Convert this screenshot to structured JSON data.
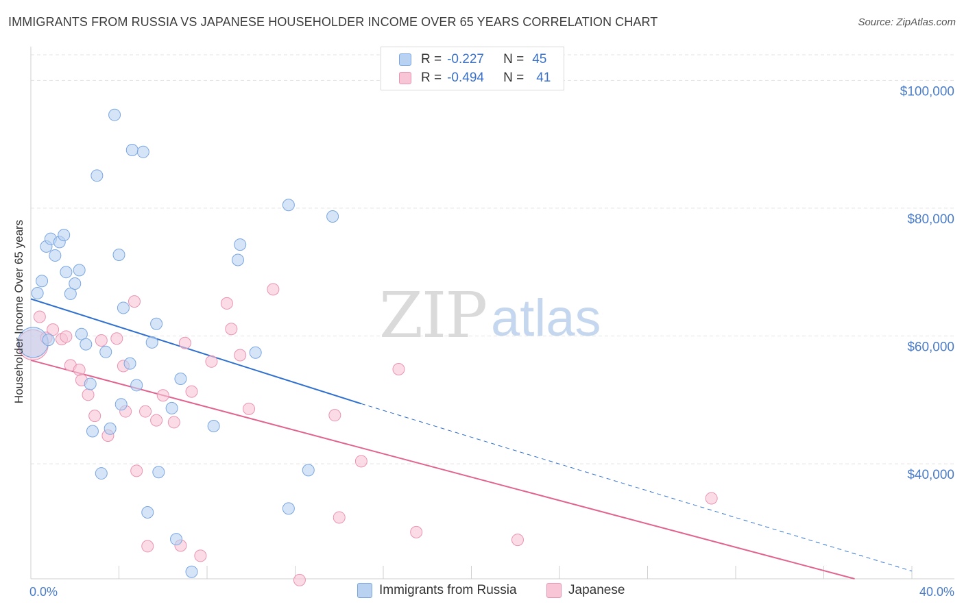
{
  "title": "IMMIGRANTS FROM RUSSIA VS JAPANESE HOUSEHOLDER INCOME OVER 65 YEARS CORRELATION CHART",
  "source": "Source: ZipAtlas.com",
  "watermark": {
    "zip": "ZIP",
    "atlas": "atlas"
  },
  "legend": {
    "rows": [
      {
        "r_label": "R =",
        "r_value": "-0.227",
        "n_label": "N =",
        "n_value": "45"
      },
      {
        "r_label": "R =",
        "r_value": "-0.494",
        "n_label": "N =",
        "n_value": "41"
      }
    ]
  },
  "bottom_legend": {
    "series1": "Immigrants from Russia",
    "series2": "Japanese"
  },
  "colors": {
    "russia_fill": "#b9d2f2",
    "russia_stroke": "#7aa6e0",
    "russia_line": "#2f6fce",
    "japanese_fill": "#f8c5d6",
    "japanese_stroke": "#e993b3",
    "japanese_line": "#e0648f",
    "grid": "#e3e3e3",
    "tick_label": "#4a7cc9"
  },
  "chart_data": {
    "type": "scatter",
    "xlabel": "",
    "ylabel": "Householder Income Over 65 years",
    "xlim": [
      0,
      40
    ],
    "ylim": [
      22000,
      104000
    ],
    "x_tick_labels": {
      "min": "0.0%",
      "max": "40.0%"
    },
    "y_ticks": [
      40000,
      60000,
      80000,
      100000
    ],
    "y_tick_labels": [
      "$40,000",
      "$60,000",
      "$80,000",
      "$100,000"
    ],
    "series": [
      {
        "name": "Immigrants from Russia",
        "trend": {
          "x0": 0,
          "y0": 65800,
          "x1": 15,
          "y1": 49400,
          "dash_to_x": 40,
          "dash_to_y": 23200
        },
        "points": [
          {
            "x": 0.1,
            "y": 59000,
            "big": true
          },
          {
            "x": 0.3,
            "y": 66700
          },
          {
            "x": 0.5,
            "y": 68600
          },
          {
            "x": 0.7,
            "y": 74000
          },
          {
            "x": 0.8,
            "y": 59400
          },
          {
            "x": 0.9,
            "y": 75200
          },
          {
            "x": 1.1,
            "y": 72600
          },
          {
            "x": 1.3,
            "y": 74700
          },
          {
            "x": 1.5,
            "y": 75800
          },
          {
            "x": 1.6,
            "y": 70000
          },
          {
            "x": 1.8,
            "y": 66600
          },
          {
            "x": 2.0,
            "y": 68200
          },
          {
            "x": 2.2,
            "y": 70300
          },
          {
            "x": 2.3,
            "y": 60300
          },
          {
            "x": 2.5,
            "y": 58700
          },
          {
            "x": 2.7,
            "y": 52500
          },
          {
            "x": 2.8,
            "y": 45100
          },
          {
            "x": 3.0,
            "y": 85100
          },
          {
            "x": 3.2,
            "y": 38500
          },
          {
            "x": 3.4,
            "y": 57500
          },
          {
            "x": 3.6,
            "y": 45500
          },
          {
            "x": 3.8,
            "y": 94600
          },
          {
            "x": 4.0,
            "y": 72700
          },
          {
            "x": 4.1,
            "y": 49300
          },
          {
            "x": 4.2,
            "y": 64400
          },
          {
            "x": 4.5,
            "y": 55700
          },
          {
            "x": 4.6,
            "y": 89100
          },
          {
            "x": 4.8,
            "y": 52300
          },
          {
            "x": 5.1,
            "y": 88800
          },
          {
            "x": 5.3,
            "y": 32400
          },
          {
            "x": 5.5,
            "y": 59000
          },
          {
            "x": 5.7,
            "y": 61900
          },
          {
            "x": 5.8,
            "y": 38700
          },
          {
            "x": 6.4,
            "y": 48700
          },
          {
            "x": 6.6,
            "y": 28200
          },
          {
            "x": 6.8,
            "y": 53300
          },
          {
            "x": 7.3,
            "y": 23100
          },
          {
            "x": 8.3,
            "y": 45900
          },
          {
            "x": 9.4,
            "y": 71900
          },
          {
            "x": 9.5,
            "y": 74300
          },
          {
            "x": 10.2,
            "y": 57400
          },
          {
            "x": 11.7,
            "y": 80500
          },
          {
            "x": 11.7,
            "y": 33000
          },
          {
            "x": 12.6,
            "y": 39000
          },
          {
            "x": 13.7,
            "y": 78700
          }
        ]
      },
      {
        "name": "Japanese",
        "trend": {
          "x0": 0,
          "y0": 56200,
          "x1": 37.4,
          "y1": 22000
        },
        "points": [
          {
            "x": 0.1,
            "y": 58600,
            "big": true
          },
          {
            "x": 0.4,
            "y": 63000
          },
          {
            "x": 0.7,
            "y": 59700
          },
          {
            "x": 1.0,
            "y": 61000
          },
          {
            "x": 1.4,
            "y": 59500
          },
          {
            "x": 1.6,
            "y": 59900
          },
          {
            "x": 1.8,
            "y": 55400
          },
          {
            "x": 2.2,
            "y": 54700
          },
          {
            "x": 2.3,
            "y": 53100
          },
          {
            "x": 2.6,
            "y": 50800
          },
          {
            "x": 2.9,
            "y": 47500
          },
          {
            "x": 3.2,
            "y": 59300
          },
          {
            "x": 3.5,
            "y": 44400
          },
          {
            "x": 3.9,
            "y": 59600
          },
          {
            "x": 4.2,
            "y": 55300
          },
          {
            "x": 4.3,
            "y": 48200
          },
          {
            "x": 4.7,
            "y": 65400
          },
          {
            "x": 4.8,
            "y": 38900
          },
          {
            "x": 5.2,
            "y": 48200
          },
          {
            "x": 5.3,
            "y": 27100
          },
          {
            "x": 5.7,
            "y": 46800
          },
          {
            "x": 6.0,
            "y": 50700
          },
          {
            "x": 6.5,
            "y": 46500
          },
          {
            "x": 6.8,
            "y": 27200
          },
          {
            "x": 7.0,
            "y": 58900
          },
          {
            "x": 7.3,
            "y": 51300
          },
          {
            "x": 7.7,
            "y": 25600
          },
          {
            "x": 8.2,
            "y": 56000
          },
          {
            "x": 8.9,
            "y": 65100
          },
          {
            "x": 9.1,
            "y": 61100
          },
          {
            "x": 9.5,
            "y": 57000
          },
          {
            "x": 9.9,
            "y": 48600
          },
          {
            "x": 11.0,
            "y": 67300
          },
          {
            "x": 12.2,
            "y": 21800
          },
          {
            "x": 13.8,
            "y": 47600
          },
          {
            "x": 14.0,
            "y": 31600
          },
          {
            "x": 15.0,
            "y": 40400
          },
          {
            "x": 16.7,
            "y": 54800
          },
          {
            "x": 17.5,
            "y": 29300
          },
          {
            "x": 22.1,
            "y": 28100
          },
          {
            "x": 30.9,
            "y": 34600
          }
        ]
      }
    ]
  }
}
